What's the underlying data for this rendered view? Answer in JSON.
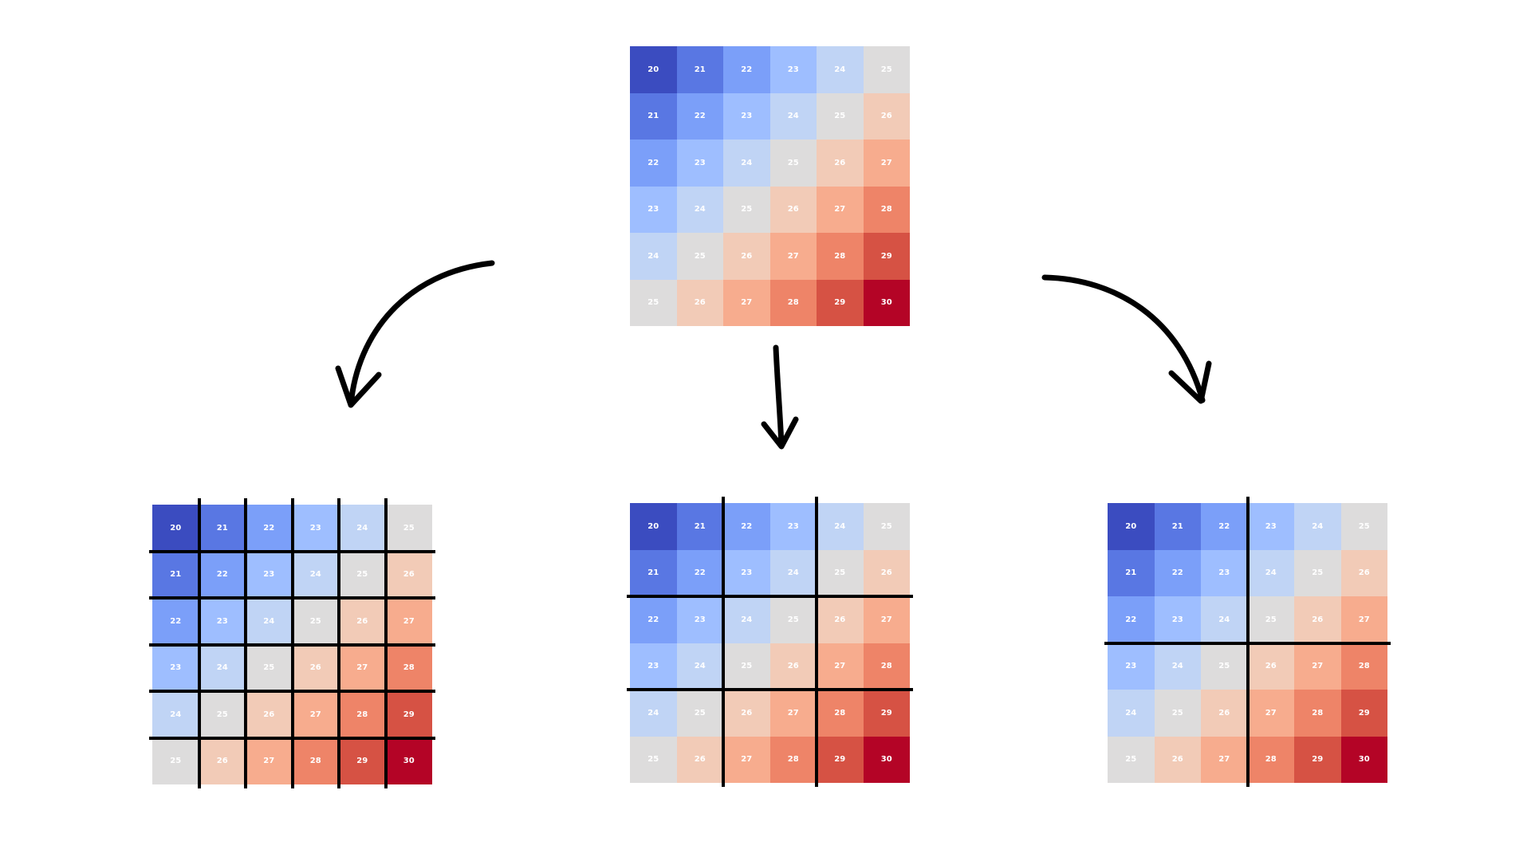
{
  "colors": {
    "20": "#3b4cc0",
    "21": "#5977e3",
    "22": "#7b9ff9",
    "23": "#9ebeff",
    "24": "#c0d4f5",
    "25": "#dddcdc",
    "26": "#f2cbb7",
    "27": "#f7ac8e",
    "28": "#ee8468",
    "29": "#d65244",
    "30": "#b40426",
    "cell_text": "#ffffff",
    "lines": "#000000",
    "background": "#ffffff"
  },
  "matrix_values": [
    [
      "20",
      "21",
      "22",
      "23",
      "24",
      "25"
    ],
    [
      "21",
      "22",
      "23",
      "24",
      "25",
      "26"
    ],
    [
      "22",
      "23",
      "24",
      "25",
      "26",
      "27"
    ],
    [
      "23",
      "24",
      "25",
      "26",
      "27",
      "28"
    ],
    [
      "24",
      "25",
      "26",
      "27",
      "28",
      "29"
    ],
    [
      "25",
      "26",
      "27",
      "28",
      "29",
      "30"
    ]
  ],
  "grids": [
    {
      "id": "source-grid",
      "block_size": 0
    },
    {
      "id": "grid-1x1-blocks",
      "block_size": 1
    },
    {
      "id": "grid-2x2-blocks",
      "block_size": 2
    },
    {
      "id": "grid-3x3-blocks",
      "block_size": 3
    }
  ],
  "arrows": [
    {
      "id": "arrow-to-left",
      "icon": "curved-arrow-down-left-icon"
    },
    {
      "id": "arrow-to-center",
      "icon": "arrow-down-icon"
    },
    {
      "id": "arrow-to-right",
      "icon": "curved-arrow-down-right-icon"
    }
  ]
}
